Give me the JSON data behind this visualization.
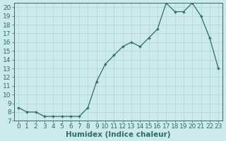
{
  "x": [
    0,
    1,
    2,
    3,
    4,
    5,
    6,
    7,
    8,
    9,
    10,
    11,
    12,
    13,
    14,
    15,
    16,
    17,
    18,
    19,
    20,
    21,
    22,
    23
  ],
  "y": [
    8.5,
    8.0,
    8.0,
    7.5,
    7.5,
    7.5,
    7.5,
    7.5,
    8.5,
    11.5,
    13.5,
    14.5,
    15.5,
    16.0,
    15.5,
    16.5,
    17.5,
    20.5,
    19.5,
    19.5,
    20.5,
    19.0,
    16.5,
    13.0
  ],
  "xlabel": "Humidex (Indice chaleur)",
  "xlim": [
    -0.5,
    23.5
  ],
  "ylim": [
    7,
    20.5
  ],
  "yticks": [
    7,
    8,
    9,
    10,
    11,
    12,
    13,
    14,
    15,
    16,
    17,
    18,
    19,
    20
  ],
  "xticks": [
    0,
    1,
    2,
    3,
    4,
    5,
    6,
    7,
    8,
    9,
    10,
    11,
    12,
    13,
    14,
    15,
    16,
    17,
    18,
    19,
    20,
    21,
    22,
    23
  ],
  "line_color": "#2d6b6b",
  "marker": "+",
  "bg_color": "#cceaea",
  "grid_color": "#b0d4d4",
  "label_fontsize": 7.5,
  "tick_fontsize": 6.5
}
